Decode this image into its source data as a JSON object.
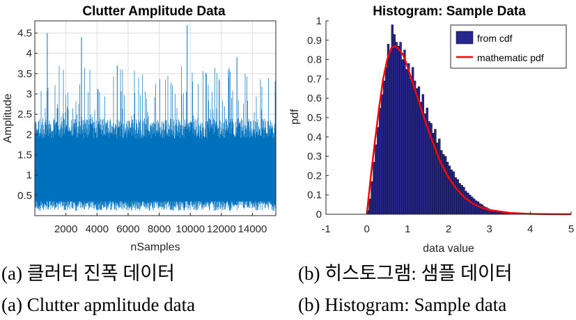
{
  "chart_data": [
    {
      "type": "line",
      "title": "Clutter Amplitude Data",
      "xlabel": "nSamples",
      "ylabel": "Amplitude",
      "xlim": [
        0,
        15500
      ],
      "ylim": [
        0,
        4.8
      ],
      "xticks": [
        2000,
        4000,
        6000,
        8000,
        10000,
        12000,
        14000
      ],
      "xtick_labels": [
        "2000",
        "4000",
        "6000",
        "8000",
        "10000",
        "12000",
        "14000"
      ],
      "yticks": [
        0.5,
        1,
        1.5,
        2,
        2.5,
        3,
        3.5,
        4,
        4.5
      ],
      "ytick_labels": [
        "0.5",
        "1",
        "1.5",
        "2",
        "2.5",
        "3",
        "3.5",
        "4",
        "4.5"
      ],
      "grid": true,
      "color": "#0072BD",
      "n_samples": 15500,
      "approx_amplitude_range": [
        0.1,
        4.7
      ],
      "notable_peaks": [
        {
          "x": 800,
          "y": 4.5
        },
        {
          "x": 3000,
          "y": 4.4
        },
        {
          "x": 9800,
          "y": 4.7
        },
        {
          "x": 5300,
          "y": 3.7
        },
        {
          "x": 13000,
          "y": 3.9
        }
      ]
    },
    {
      "type": "bar",
      "title": "Histogram: Sample Data",
      "xlabel": "data value",
      "ylabel": "pdf",
      "xlim": [
        -1,
        5
      ],
      "ylim": [
        0,
        1
      ],
      "xticks": [
        -1,
        0,
        1,
        2,
        3,
        4,
        5
      ],
      "xtick_labels": [
        "-1",
        "0",
        "1",
        "2",
        "3",
        "4",
        "5"
      ],
      "yticks": [
        0,
        0.1,
        0.2,
        0.3,
        0.4,
        0.5,
        0.6,
        0.7,
        0.8,
        0.9,
        1
      ],
      "ytick_labels": [
        "0",
        "0.1",
        "0.2",
        "0.3",
        "0.4",
        "0.5",
        "0.6",
        "0.7",
        "0.8",
        "0.9",
        "1"
      ],
      "grid": false,
      "legend": {
        "position": "top-right",
        "entries": [
          "from cdf",
          "mathematic pdf"
        ]
      },
      "series": [
        {
          "name": "from cdf",
          "kind": "histogram",
          "color": "#26268C",
          "bin_width": 0.05,
          "bin_start": 0,
          "values": [
            0.02,
            0.08,
            0.17,
            0.27,
            0.36,
            0.45,
            0.55,
            0.62,
            0.69,
            0.76,
            0.88,
            0.84,
            0.98,
            0.93,
            0.89,
            0.87,
            0.89,
            0.8,
            0.85,
            0.75,
            0.78,
            0.7,
            0.76,
            0.69,
            0.65,
            0.66,
            0.58,
            0.62,
            0.52,
            0.55,
            0.48,
            0.47,
            0.42,
            0.44,
            0.37,
            0.39,
            0.33,
            0.31,
            0.3,
            0.27,
            0.25,
            0.23,
            0.22,
            0.19,
            0.18,
            0.16,
            0.15,
            0.14,
            0.12,
            0.11,
            0.1,
            0.09,
            0.08,
            0.07,
            0.065,
            0.055,
            0.05,
            0.04,
            0.035,
            0.03,
            0.025,
            0.022,
            0.018,
            0.015,
            0.012,
            0.01,
            0.008,
            0.006,
            0.005,
            0.004
          ]
        },
        {
          "name": "mathematic pdf",
          "kind": "line",
          "color": "#FF0000",
          "x": [
            0,
            0.1,
            0.2,
            0.3,
            0.4,
            0.5,
            0.6,
            0.7,
            0.8,
            0.9,
            1.0,
            1.2,
            1.4,
            1.6,
            1.8,
            2.0,
            2.2,
            2.4,
            2.6,
            2.8,
            3.0,
            3.5,
            4.0,
            4.5,
            5.0
          ],
          "y": [
            0,
            0.2,
            0.38,
            0.55,
            0.7,
            0.8,
            0.86,
            0.87,
            0.85,
            0.82,
            0.76,
            0.63,
            0.5,
            0.38,
            0.27,
            0.19,
            0.13,
            0.085,
            0.055,
            0.035,
            0.022,
            0.007,
            0.002,
            0.0005,
            0.0001
          ]
        }
      ]
    }
  ],
  "captions": {
    "a_korean": "(a) 클러터 진폭 데이터",
    "b_korean": "(b) 히스토그램: 샘플 데이터",
    "a_english": "(a) Clutter apmlitude data",
    "b_english": "(b) Histogram: Sample data"
  }
}
